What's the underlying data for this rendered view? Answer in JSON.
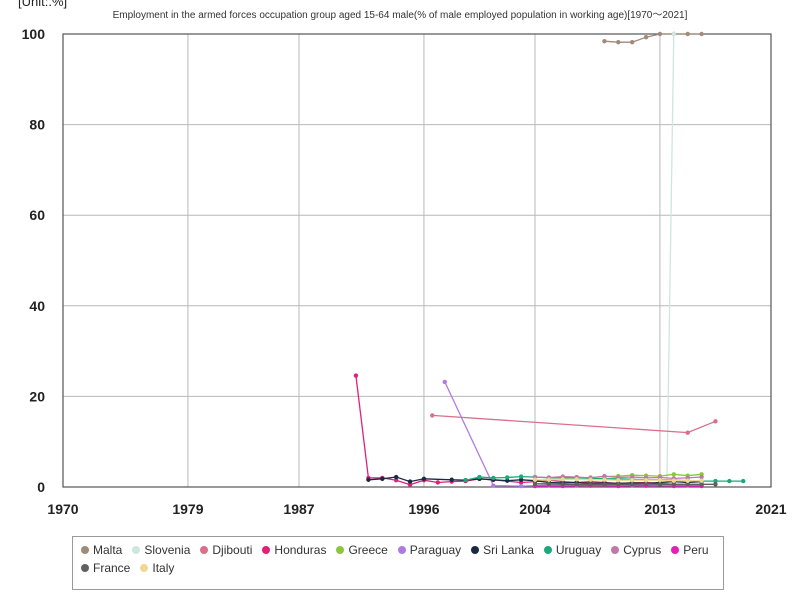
{
  "unit_label": "[Unit:.%]",
  "chart_data": {
    "type": "line",
    "title": "Employment in the armed forces occupation group aged 15-64 male(% of male employed population in working age)[1970～2021]",
    "xlabel": "",
    "ylabel": "",
    "xlim": [
      1970,
      2021
    ],
    "ylim": [
      0,
      100
    ],
    "x_ticks": [
      "1970",
      "1979",
      "1987",
      "1996",
      "2004",
      "2013",
      "2021"
    ],
    "y_ticks": [
      "0",
      "20",
      "40",
      "60",
      "80",
      "100"
    ],
    "grid": true,
    "legend_position": "bottom",
    "series": [
      {
        "name": "Malta",
        "color": "#a08a7a",
        "points": [
          [
            2009,
            98.4
          ],
          [
            2010,
            98.2
          ],
          [
            2011,
            98.2
          ],
          [
            2012,
            99.3
          ],
          [
            2013,
            100
          ],
          [
            2014,
            100
          ],
          [
            2015,
            100
          ],
          [
            2016,
            100
          ]
        ]
      },
      {
        "name": "Slovenia",
        "color": "#cfe6e0",
        "points": [
          [
            2013.5,
            1.0
          ],
          [
            2014,
            100
          ]
        ]
      },
      {
        "name": "Djibouti",
        "color": "#d9708a",
        "points": [
          [
            1996.6,
            15.8
          ],
          [
            2015,
            12.0
          ],
          [
            2017,
            14.5
          ]
        ]
      },
      {
        "name": "Honduras",
        "color": "#e0207a",
        "points": [
          [
            1991.1,
            24.6
          ],
          [
            1992,
            2.0
          ],
          [
            1993,
            2.0
          ],
          [
            1994,
            1.5
          ],
          [
            1995,
            0.5
          ],
          [
            1996,
            1.5
          ],
          [
            1997,
            1.0
          ],
          [
            1998,
            1.2
          ],
          [
            1999,
            1.3
          ],
          [
            2000,
            1.8
          ],
          [
            2001,
            1.6
          ],
          [
            2003,
            1.0
          ],
          [
            2004,
            1.2
          ],
          [
            2005,
            1.5
          ],
          [
            2006,
            1.2
          ],
          [
            2007,
            1.0
          ],
          [
            2008,
            1.2
          ],
          [
            2009,
            1.0
          ],
          [
            2010,
            0.8
          ],
          [
            2011,
            0.9
          ],
          [
            2012,
            1.0
          ],
          [
            2013,
            0.8
          ],
          [
            2014,
            0.6
          ],
          [
            2015,
            0.5
          ],
          [
            2016,
            0.5
          ]
        ]
      },
      {
        "name": "Greece",
        "color": "#8cc63f",
        "points": [
          [
            2004,
            1.4
          ],
          [
            2005,
            1.6
          ],
          [
            2006,
            1.8
          ],
          [
            2007,
            2.0
          ],
          [
            2008,
            2.1
          ],
          [
            2009,
            2.3
          ],
          [
            2010,
            2.4
          ],
          [
            2011,
            2.6
          ],
          [
            2012,
            2.5
          ],
          [
            2013,
            2.4
          ],
          [
            2014,
            2.8
          ],
          [
            2015,
            2.5
          ],
          [
            2016,
            2.8
          ]
        ]
      },
      {
        "name": "Paraguay",
        "color": "#b07ae0",
        "points": [
          [
            1997.5,
            23.2
          ],
          [
            2001,
            0.3
          ],
          [
            2003,
            0.2
          ],
          [
            2005,
            0.4
          ],
          [
            2007,
            0.3
          ],
          [
            2009,
            0.5
          ],
          [
            2011,
            0.4
          ],
          [
            2013,
            0.6
          ],
          [
            2015,
            0.4
          ],
          [
            2016,
            0.5
          ]
        ]
      },
      {
        "name": "Sri Lanka",
        "color": "#1a2a44",
        "points": [
          [
            1992,
            1.6
          ],
          [
            1993,
            1.8
          ],
          [
            1994,
            2.2
          ],
          [
            1995,
            1.2
          ],
          [
            1996,
            1.8
          ],
          [
            1998,
            1.6
          ],
          [
            1999,
            1.5
          ],
          [
            2000,
            1.8
          ],
          [
            2001,
            1.6
          ],
          [
            2002,
            1.4
          ],
          [
            2003,
            1.6
          ],
          [
            2004,
            1.4
          ],
          [
            2005,
            1.0
          ],
          [
            2006,
            0.9
          ],
          [
            2007,
            1.0
          ],
          [
            2008,
            0.8
          ],
          [
            2009,
            0.9
          ],
          [
            2010,
            0.8
          ],
          [
            2011,
            0.9
          ],
          [
            2012,
            0.8
          ],
          [
            2013,
            1.0
          ],
          [
            2014,
            1.2
          ],
          [
            2015,
            1.0
          ],
          [
            2016,
            1.2
          ]
        ]
      },
      {
        "name": "Uruguay",
        "color": "#1aaa78",
        "points": [
          [
            1999,
            1.5
          ],
          [
            2000,
            2.2
          ],
          [
            2001,
            2.0
          ],
          [
            2002,
            2.1
          ],
          [
            2003,
            2.3
          ],
          [
            2004,
            2.2
          ],
          [
            2005,
            2.0
          ],
          [
            2006,
            2.1
          ],
          [
            2007,
            2.0
          ],
          [
            2008,
            1.9
          ],
          [
            2009,
            1.8
          ],
          [
            2010,
            1.8
          ],
          [
            2011,
            1.7
          ],
          [
            2012,
            1.6
          ],
          [
            2013,
            1.6
          ],
          [
            2014,
            1.5
          ],
          [
            2015,
            1.4
          ],
          [
            2016,
            1.3
          ],
          [
            2017,
            1.3
          ],
          [
            2018,
            1.3
          ],
          [
            2019,
            1.3
          ]
        ]
      },
      {
        "name": "Cyprus",
        "color": "#c078a8",
        "points": [
          [
            2004,
            2.2
          ],
          [
            2005,
            2.1
          ],
          [
            2006,
            2.3
          ],
          [
            2007,
            2.2
          ],
          [
            2008,
            2.0
          ],
          [
            2009,
            2.4
          ],
          [
            2010,
            2.1
          ],
          [
            2011,
            2.2
          ],
          [
            2012,
            2.0
          ],
          [
            2013,
            2.1
          ],
          [
            2014,
            1.9
          ],
          [
            2015,
            2.0
          ],
          [
            2016,
            2.2
          ]
        ]
      },
      {
        "name": "Peru",
        "color": "#e020b8",
        "points": [
          [
            2004,
            0.2
          ],
          [
            2006,
            0.2
          ],
          [
            2008,
            0.3
          ],
          [
            2010,
            0.2
          ],
          [
            2012,
            0.3
          ],
          [
            2014,
            0.2
          ],
          [
            2016,
            0.2
          ]
        ]
      },
      {
        "name": "France",
        "color": "#606060",
        "points": [
          [
            2004,
            0.7
          ],
          [
            2005,
            0.7
          ],
          [
            2006,
            0.6
          ],
          [
            2007,
            0.6
          ],
          [
            2008,
            0.6
          ],
          [
            2009,
            0.6
          ],
          [
            2010,
            0.6
          ],
          [
            2011,
            0.6
          ],
          [
            2012,
            0.7
          ],
          [
            2013,
            0.6
          ],
          [
            2014,
            0.6
          ],
          [
            2015,
            0.6
          ],
          [
            2016,
            0.6
          ],
          [
            2017,
            0.6
          ]
        ]
      },
      {
        "name": "Italy",
        "color": "#f0d890",
        "points": [
          [
            2004,
            1.6
          ],
          [
            2005,
            1.6
          ],
          [
            2006,
            1.7
          ],
          [
            2007,
            1.7
          ],
          [
            2008,
            1.6
          ],
          [
            2009,
            1.6
          ],
          [
            2010,
            1.5
          ],
          [
            2011,
            1.5
          ],
          [
            2012,
            1.5
          ],
          [
            2013,
            1.5
          ],
          [
            2014,
            1.4
          ],
          [
            2015,
            1.4
          ],
          [
            2016,
            1.4
          ]
        ]
      }
    ]
  }
}
